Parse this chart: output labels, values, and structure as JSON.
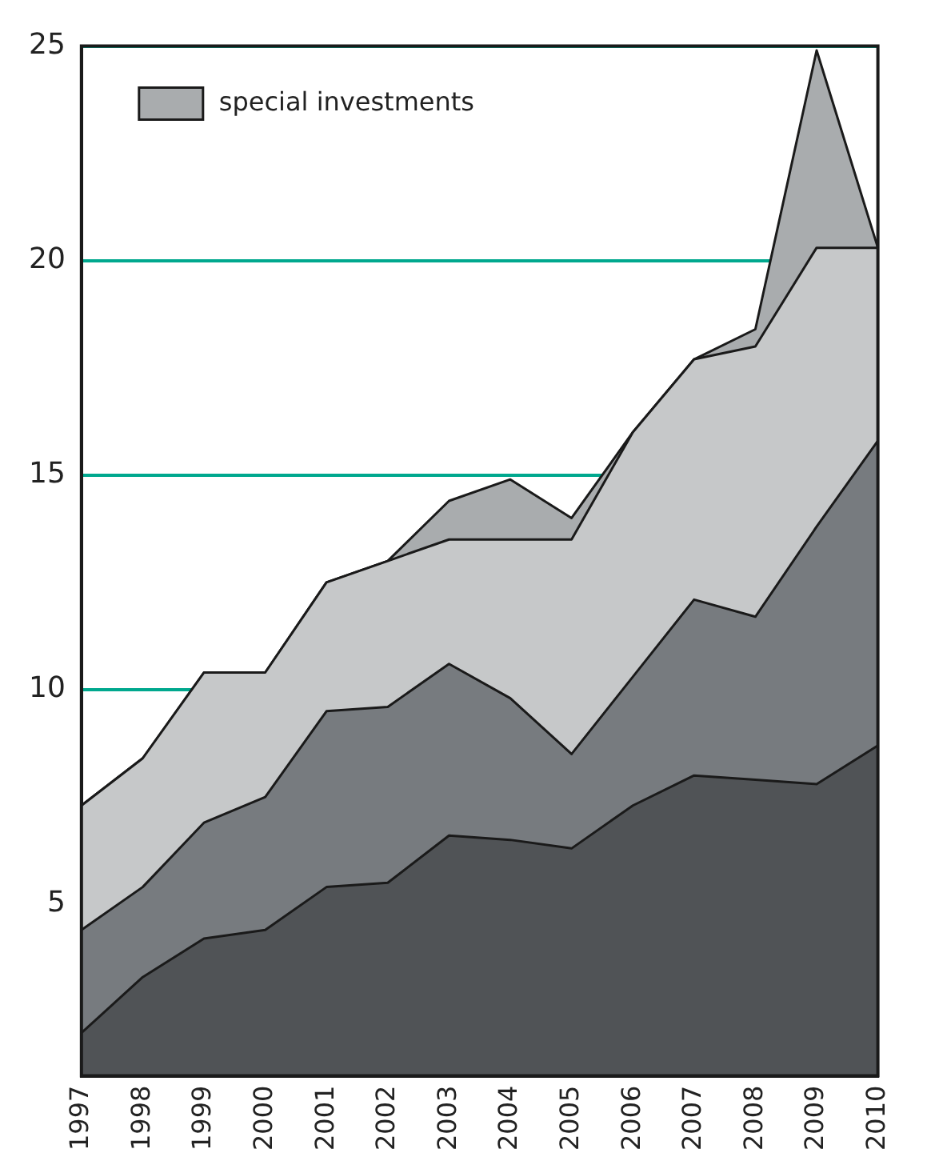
{
  "chart_data": {
    "type": "area",
    "categories": [
      "1997",
      "1998",
      "1999",
      "2000",
      "2001",
      "2002",
      "2003",
      "2004",
      "2005",
      "2006",
      "2007",
      "2008",
      "2009",
      "2010"
    ],
    "series": [
      {
        "color": "#505356",
        "values": [
          2.0,
          3.3,
          4.2,
          4.4,
          5.4,
          5.5,
          6.6,
          6.5,
          6.3,
          7.3,
          8.0,
          7.9,
          7.8,
          8.7
        ]
      },
      {
        "color": "#777b7f",
        "values": [
          4.4,
          5.4,
          6.9,
          7.5,
          9.5,
          9.6,
          10.6,
          9.8,
          8.5,
          10.3,
          12.1,
          11.7,
          13.8,
          15.8
        ]
      },
      {
        "color": "#c6c8c9",
        "values": [
          7.3,
          8.4,
          10.4,
          10.4,
          12.5,
          13.0,
          13.5,
          13.5,
          13.5,
          16.0,
          17.7,
          18.0,
          20.3,
          20.3
        ]
      },
      {
        "name": "special investments",
        "color": "#a9acae",
        "values": [
          7.3,
          8.4,
          10.4,
          10.4,
          12.5,
          13.0,
          14.4,
          14.9,
          14.0,
          16.0,
          17.7,
          18.4,
          24.9,
          20.3
        ]
      }
    ],
    "ylim": [
      1,
      25
    ],
    "yticks": [
      5,
      10,
      15,
      20,
      25
    ],
    "grid": "y",
    "legend": "top left"
  }
}
